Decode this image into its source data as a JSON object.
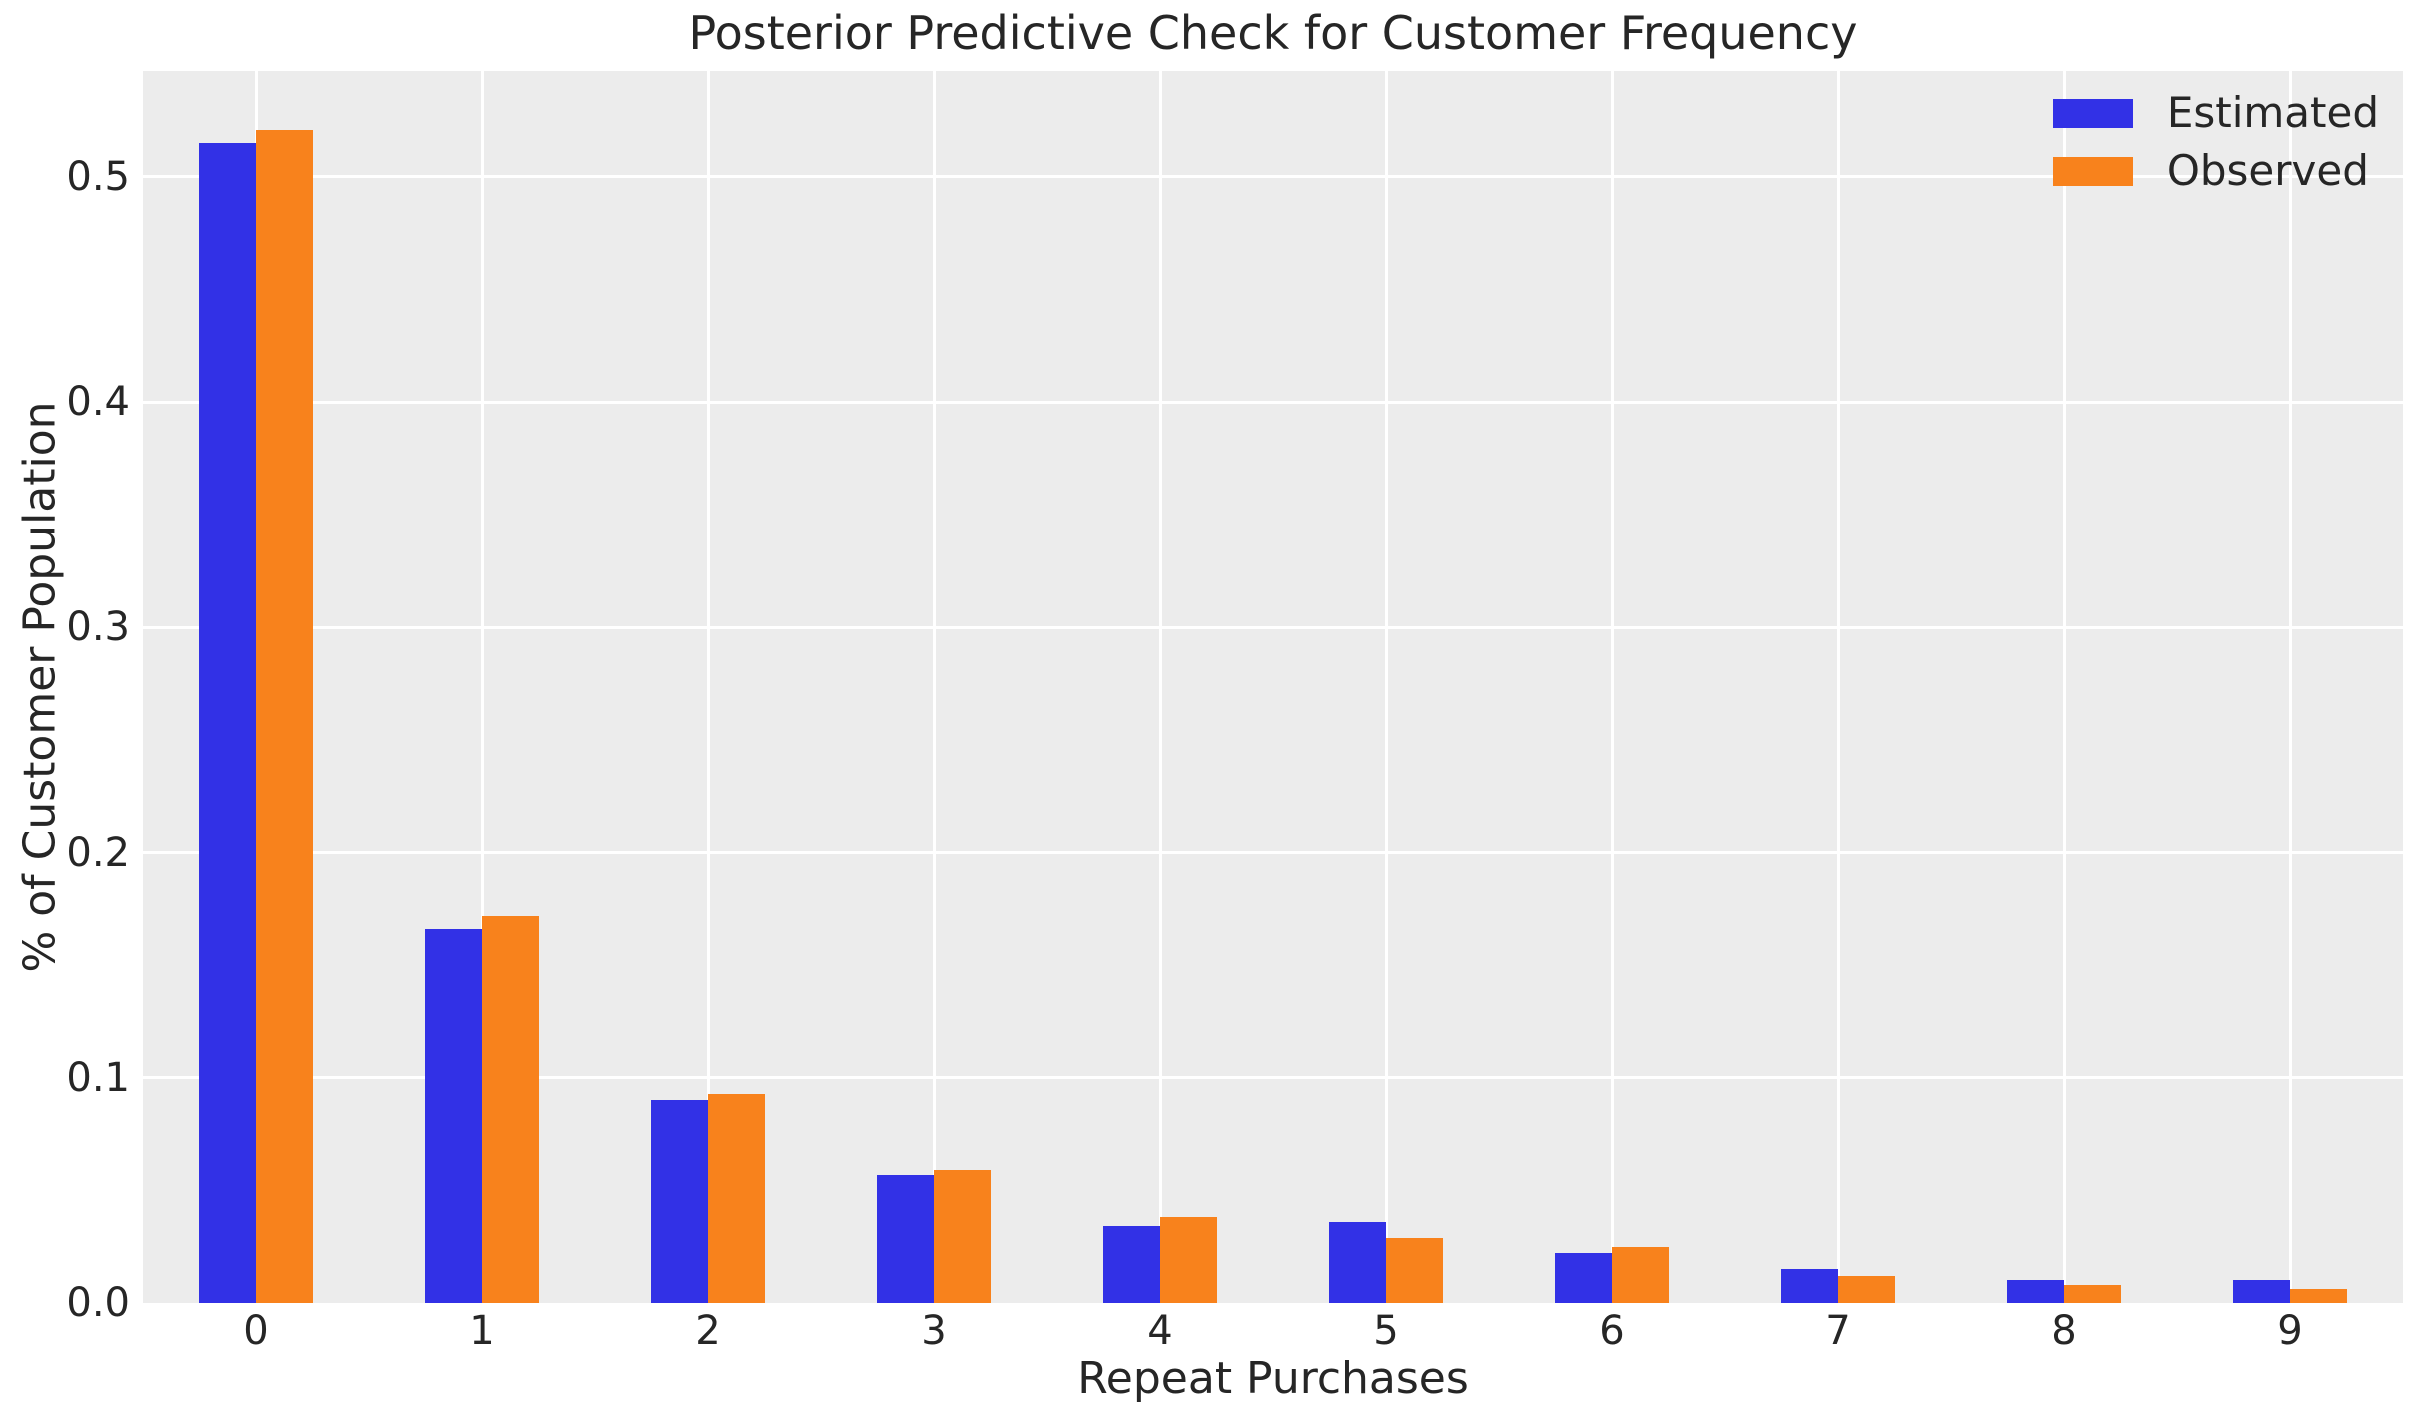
{
  "chart_data": {
    "type": "bar",
    "title": "Posterior Predictive Check for Customer Frequency",
    "xlabel": "Repeat Purchases",
    "ylabel": "% of Customer Population",
    "categories": [
      "0",
      "1",
      "2",
      "3",
      "4",
      "5",
      "6",
      "7",
      "8",
      "9"
    ],
    "series": [
      {
        "name": "Estimated",
        "color": "#3231e6",
        "values": [
          0.515,
          0.166,
          0.09,
          0.057,
          0.034,
          0.036,
          0.022,
          0.015,
          0.01,
          0.01
        ]
      },
      {
        "name": "Observed",
        "color": "#f8821c",
        "values": [
          0.521,
          0.172,
          0.093,
          0.059,
          0.038,
          0.029,
          0.025,
          0.012,
          0.008,
          0.006
        ]
      }
    ],
    "yticks": [
      0.0,
      0.1,
      0.2,
      0.3,
      0.4,
      0.5
    ],
    "ytick_labels": [
      "0.0",
      "0.1",
      "0.2",
      "0.3",
      "0.4",
      "0.5"
    ],
    "ylim": [
      0,
      0.547
    ],
    "grid": true,
    "legend_position": "upper right",
    "plot_bg": "#ececec",
    "grid_color": "#ffffff",
    "text_color": "#262626"
  }
}
